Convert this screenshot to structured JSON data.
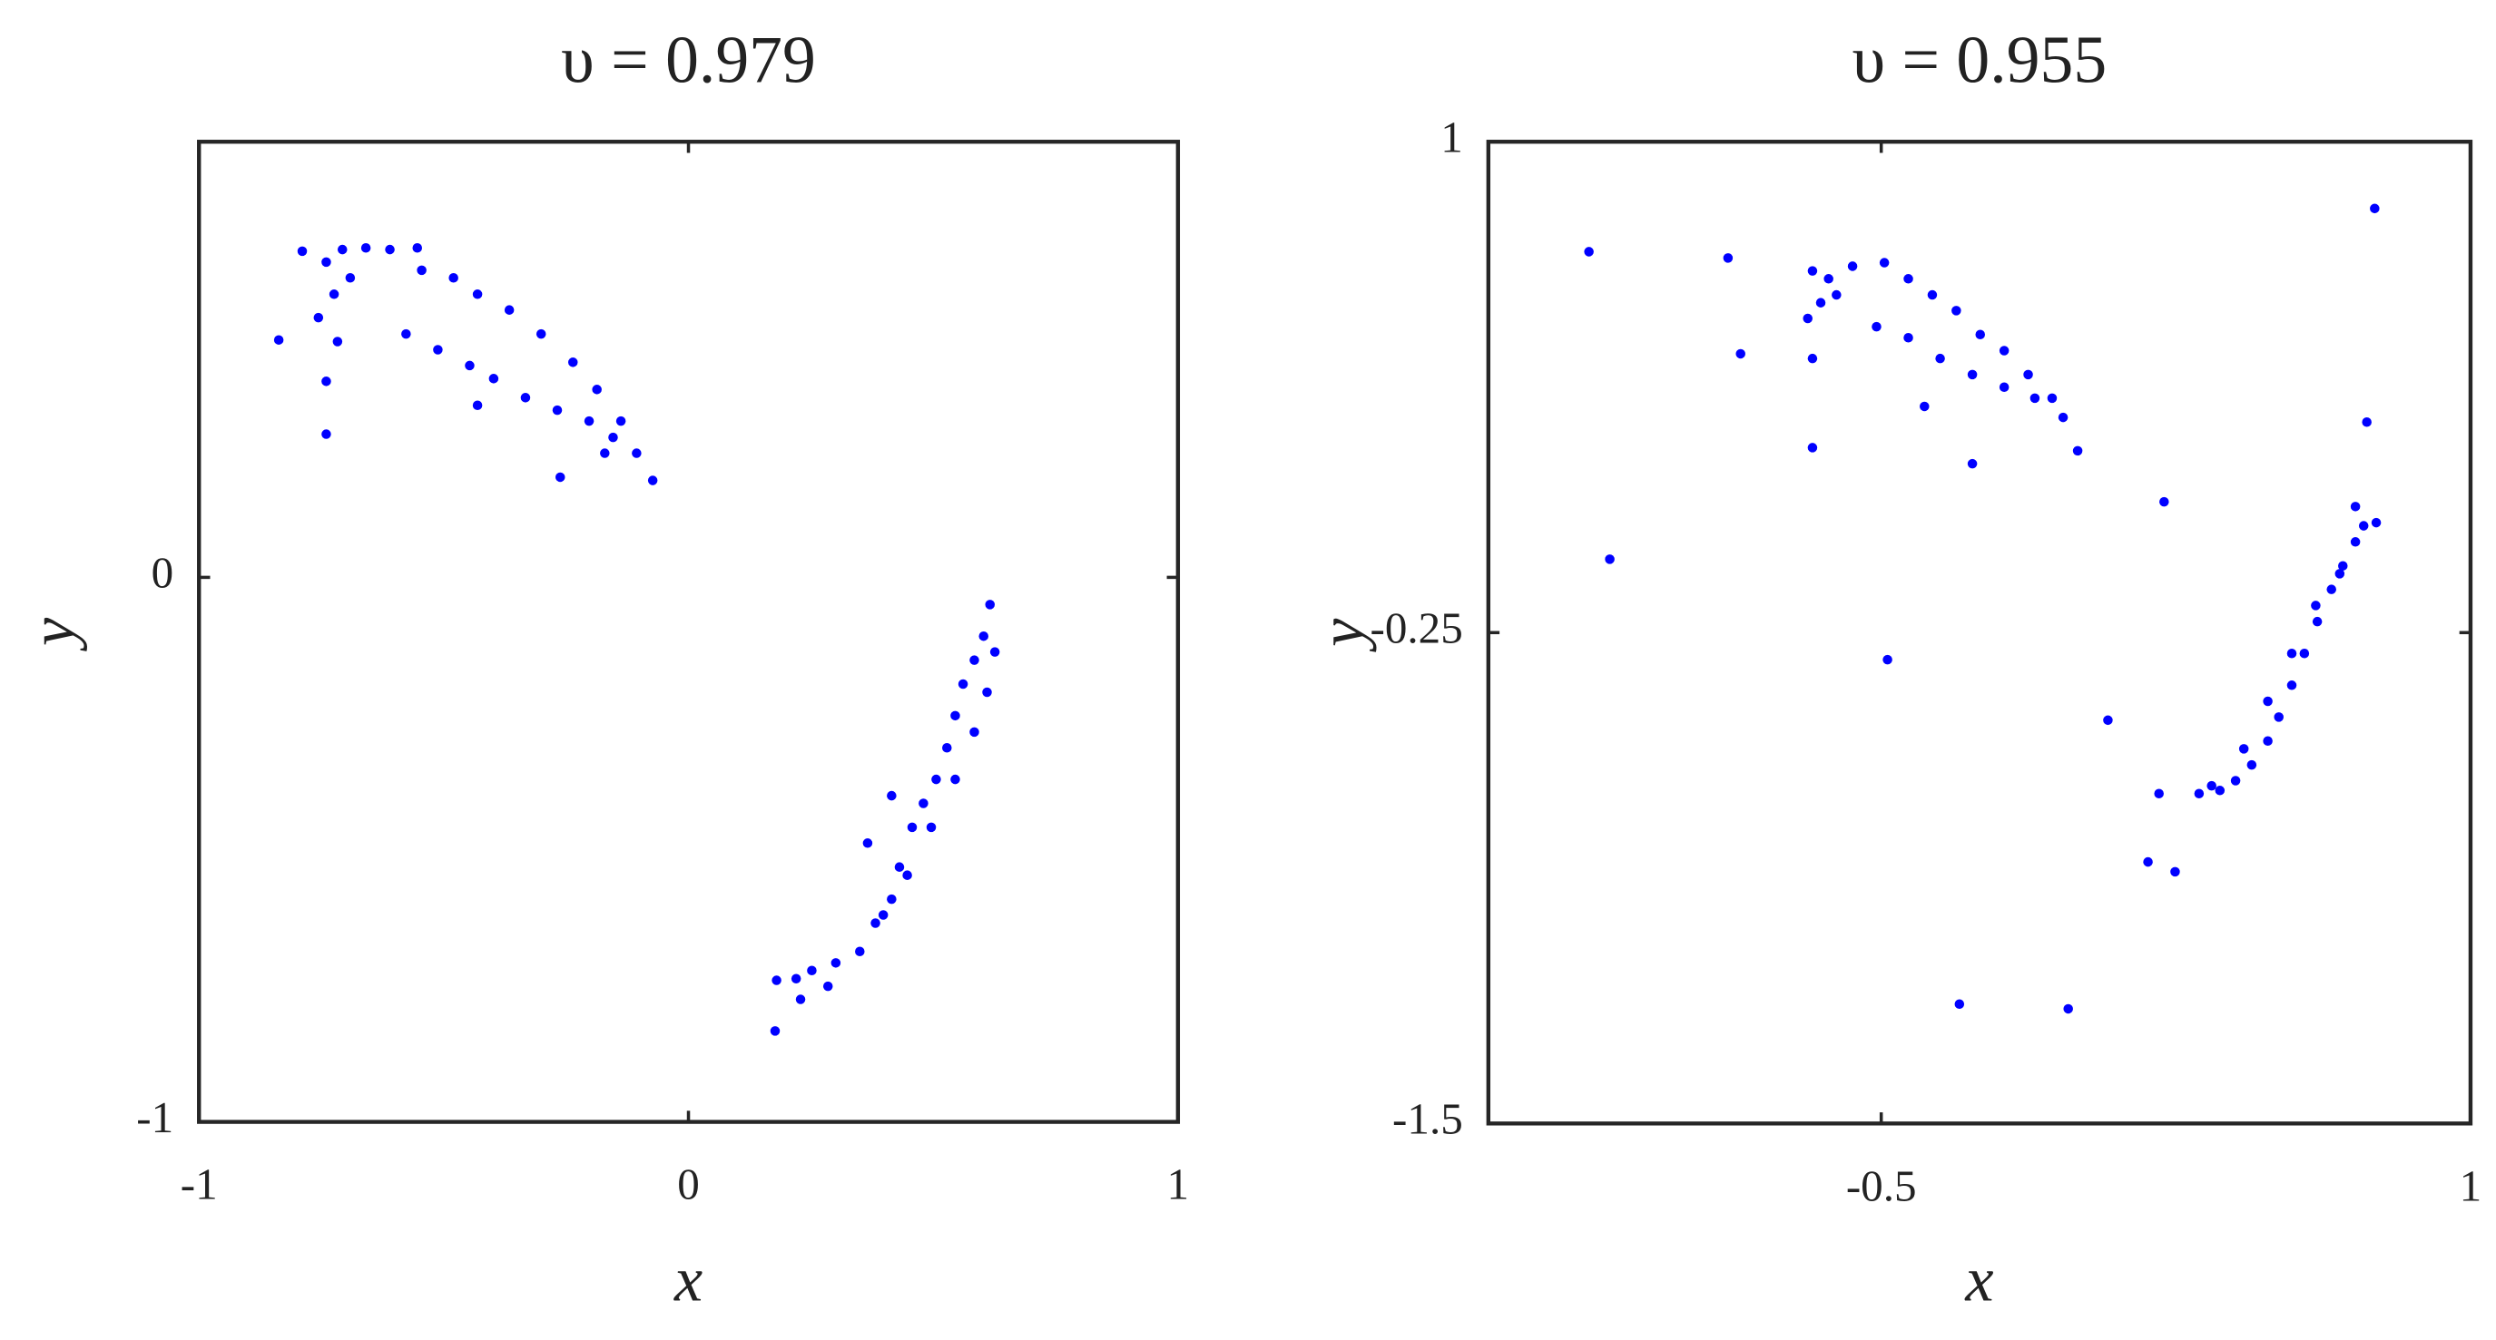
{
  "chart_data": [
    {
      "type": "scatter",
      "title": "υ = 0.979",
      "x_label": "x",
      "y_label": "y",
      "color": "#0000ff",
      "xlim": [
        -1,
        1
      ],
      "ylim": [
        -1,
        0.8
      ],
      "xticks": [
        -1,
        0,
        1
      ],
      "yticks": [
        -1,
        0
      ],
      "x": [
        -0.837,
        -0.789,
        -0.74,
        -0.74,
        -0.74,
        -0.756,
        -0.724,
        -0.707,
        -0.659,
        -0.61,
        -0.554,
        -0.691,
        -0.717,
        -0.545,
        -0.48,
        -0.431,
        -0.366,
        -0.301,
        -0.236,
        -0.187,
        -0.138,
        -0.106,
        -0.577,
        -0.512,
        -0.447,
        -0.398,
        -0.333,
        -0.268,
        -0.203,
        -0.154,
        -0.262,
        -0.073,
        -0.431,
        -0.171,
        0.177,
        0.18,
        0.229,
        0.252,
        0.301,
        0.35,
        0.382,
        0.415,
        0.431,
        0.457,
        0.48,
        0.506,
        0.528,
        0.545,
        0.561,
        0.584,
        0.603,
        0.616,
        0.626,
        0.61,
        0.584,
        0.545,
        0.496,
        0.447,
        0.398,
        0.366,
        0.415,
        0.285,
        0.22
      ],
      "y": [
        0.436,
        0.599,
        0.579,
        0.36,
        0.263,
        0.477,
        0.52,
        0.602,
        0.605,
        0.602,
        0.605,
        0.55,
        0.433,
        0.564,
        0.55,
        0.52,
        0.491,
        0.447,
        0.395,
        0.345,
        0.287,
        0.228,
        0.447,
        0.418,
        0.389,
        0.365,
        0.33,
        0.307,
        0.287,
        0.257,
        0.184,
        0.178,
        0.316,
        0.228,
        -0.833,
        -0.74,
        -0.775,
        -0.722,
        -0.708,
        -0.687,
        -0.635,
        -0.591,
        -0.532,
        -0.459,
        -0.415,
        -0.371,
        -0.313,
        -0.254,
        -0.196,
        -0.152,
        -0.108,
        -0.05,
        -0.137,
        -0.211,
        -0.284,
        -0.371,
        -0.459,
        -0.547,
        -0.62,
        -0.488,
        -0.401,
        -0.751,
        -0.737
      ]
    },
    {
      "type": "scatter",
      "title": "υ = 0.955",
      "x_label": "x",
      "y_label": "y",
      "color": "#0000ff",
      "xlim": [
        -1.5,
        1
      ],
      "ylim": [
        -1.5,
        1
      ],
      "xticks": [
        -0.5,
        1
      ],
      "yticks": [
        -1.5,
        -0.25,
        1
      ],
      "x": [
        -0.675,
        -0.687,
        -0.675,
        -0.634,
        -0.573,
        -0.492,
        -0.431,
        -0.37,
        -0.309,
        -0.248,
        -0.187,
        -0.126,
        -0.065,
        -0.037,
        -0.512,
        -0.431,
        -0.35,
        -0.268,
        -0.187,
        -0.109,
        -0.614,
        -0.654,
        -1.244,
        -1.191,
        -0.89,
        -0.858,
        -0.675,
        -0.484,
        -0.39,
        -0.268,
        0.0,
        0.077,
        0.22,
        0.207,
        0.179,
        0.248,
        -0.301,
        -0.024,
        0.756,
        0.736,
        0.76,
        0.707,
        0.309,
        0.362,
        0.402,
        0.443,
        0.484,
        0.512,
        0.545,
        0.577,
        0.61,
        0.646,
        0.675,
        0.707,
        0.728,
        0.423,
        0.484,
        0.545,
        0.606,
        0.667,
        0.341
      ],
      "y": [
        0.671,
        0.55,
        0.448,
        0.651,
        0.683,
        0.692,
        0.651,
        0.61,
        0.57,
        0.509,
        0.468,
        0.407,
        0.347,
        0.298,
        0.529,
        0.501,
        0.448,
        0.407,
        0.375,
        0.347,
        0.61,
        0.59,
        0.72,
        -0.063,
        0.704,
        0.46,
        0.221,
        -0.319,
        0.326,
        0.18,
        0.213,
        -0.473,
        0.083,
        -0.66,
        -0.834,
        -0.859,
        -1.196,
        -1.208,
        0.83,
        0.286,
        0.03,
        0.071,
        -0.66,
        -0.652,
        -0.627,
        -0.587,
        -0.526,
        -0.465,
        -0.384,
        -0.303,
        -0.222,
        -0.14,
        -0.08,
        -0.019,
        0.022,
        -0.546,
        -0.425,
        -0.303,
        -0.181,
        -0.1,
        -0.64
      ]
    }
  ]
}
